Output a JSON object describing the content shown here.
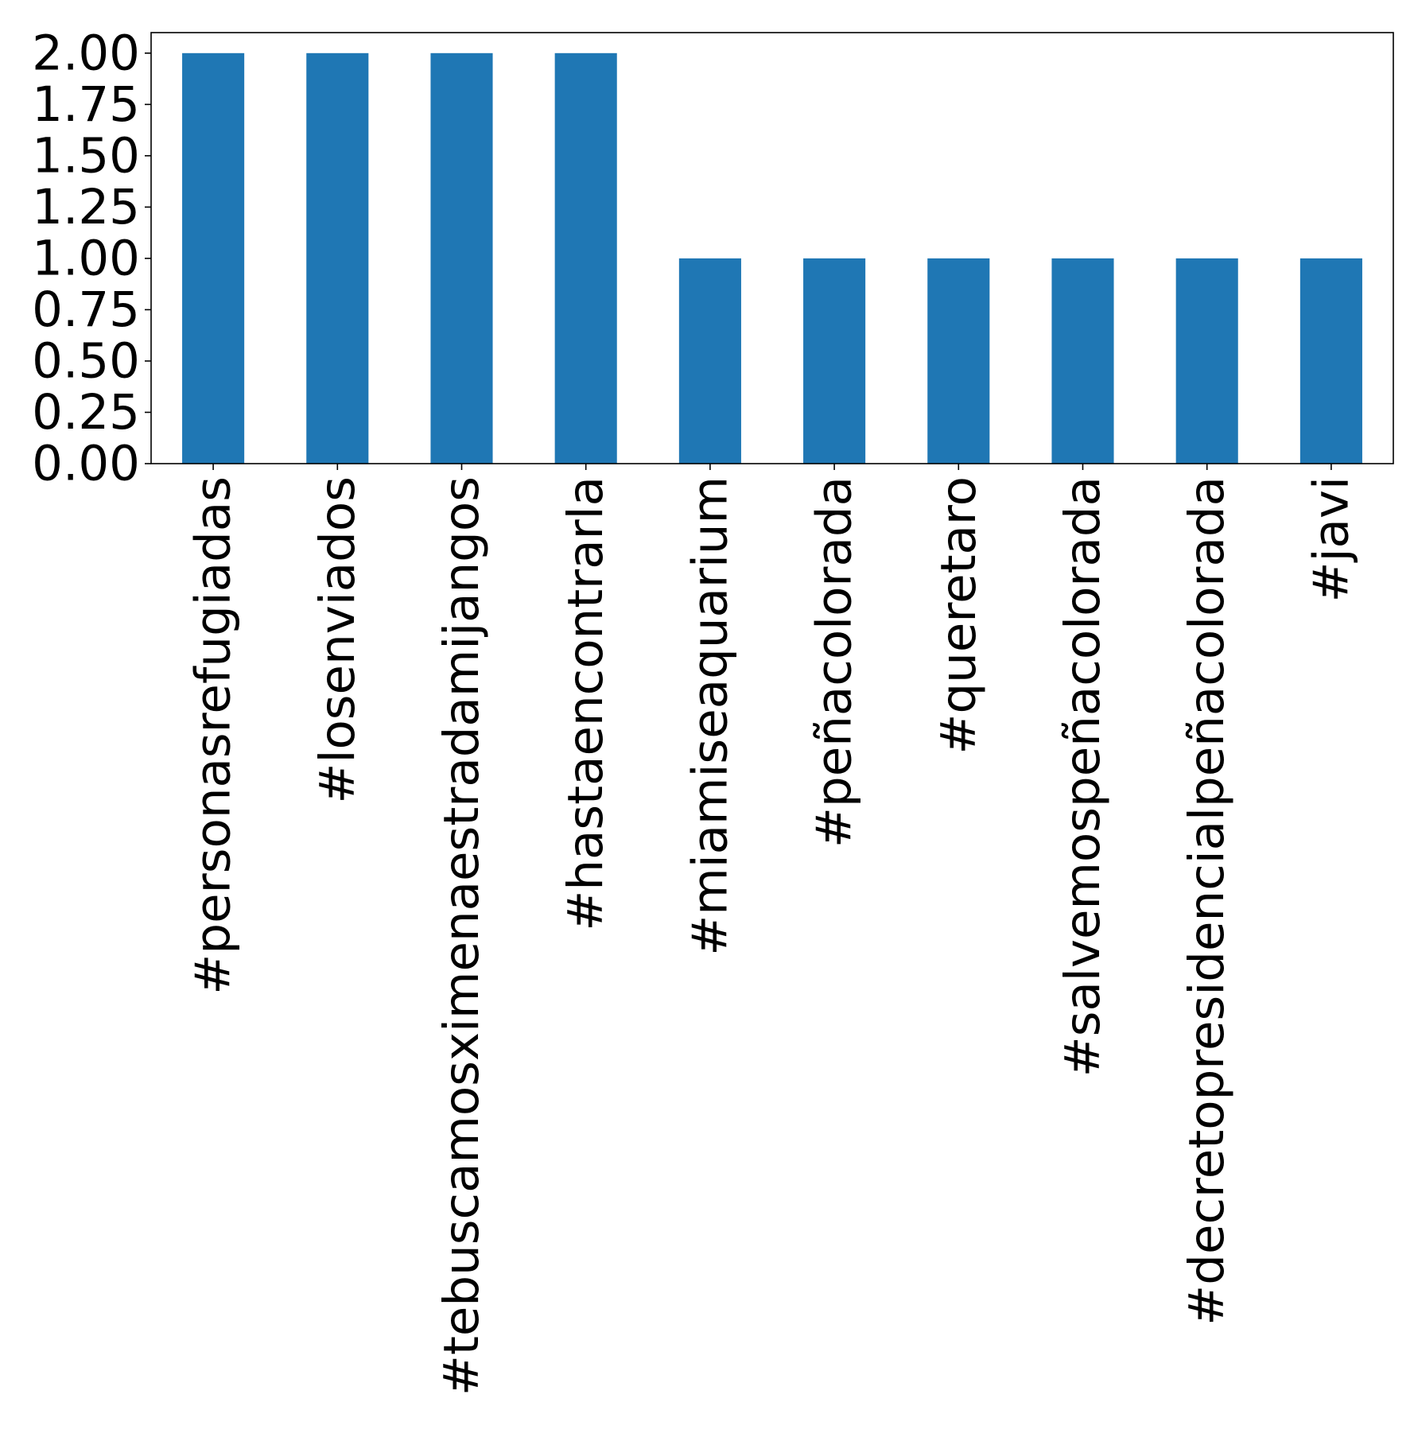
{
  "chart_data": {
    "type": "bar",
    "categories": [
      "#personasrefugiadas",
      "#losenviados",
      "#tebuscamosximenaestradamijangos",
      "#hastaencontrarla",
      "#miamiseaquarium",
      "#peñacolorada",
      "#queretaro",
      "#salvemospeñacolorada",
      "#decretopresidencialpeñacolorada",
      "#javi"
    ],
    "values": [
      2,
      2,
      2,
      2,
      1,
      1,
      1,
      1,
      1,
      1
    ],
    "title": "",
    "xlabel": "",
    "ylabel": "",
    "ylim": [
      0,
      2.1
    ],
    "yticks": [
      "0.00",
      "0.25",
      "0.50",
      "0.75",
      "1.00",
      "1.25",
      "1.50",
      "1.75",
      "2.00"
    ],
    "grid": false,
    "legend": "none",
    "bar_color": "#1f77b4"
  }
}
